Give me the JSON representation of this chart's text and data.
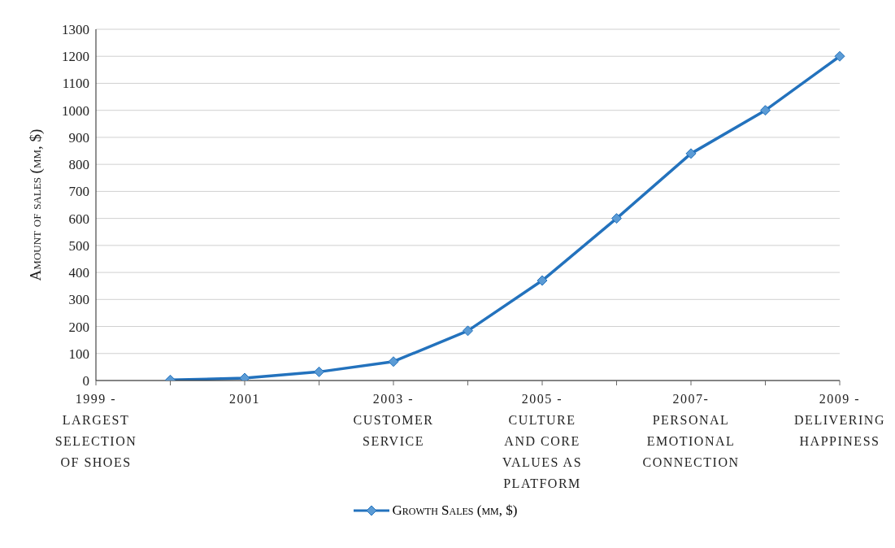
{
  "chart_data": {
    "type": "line",
    "categories": [
      "1999 - LARGEST SELECTION OF SHOES",
      null,
      "2001",
      null,
      "2003 - CUSTOMER SERVICE",
      null,
      "2005 - CULTURE AND CORE VALUES AS PLATFORM",
      null,
      "2007- PERSONAL EMOTIONAL CONNECTION",
      null,
      "2009 - DELIVERING HAPPINESS"
    ],
    "series": [
      {
        "name": "Growth Sales (mm, $)",
        "color": "#2372bd",
        "values": [
          null,
          2,
          9,
          32,
          70,
          184,
          370,
          600,
          840,
          1000,
          1200
        ]
      }
    ],
    "ylabel": "Amount of sales (mm, $)",
    "ylim": [
      0,
      1300
    ],
    "yticks": [
      0,
      100,
      200,
      300,
      400,
      500,
      600,
      700,
      800,
      900,
      1000,
      1100,
      1200,
      1300
    ],
    "grid": "y",
    "legend": "bottom",
    "marker": "diamond",
    "line_style": "solid"
  }
}
